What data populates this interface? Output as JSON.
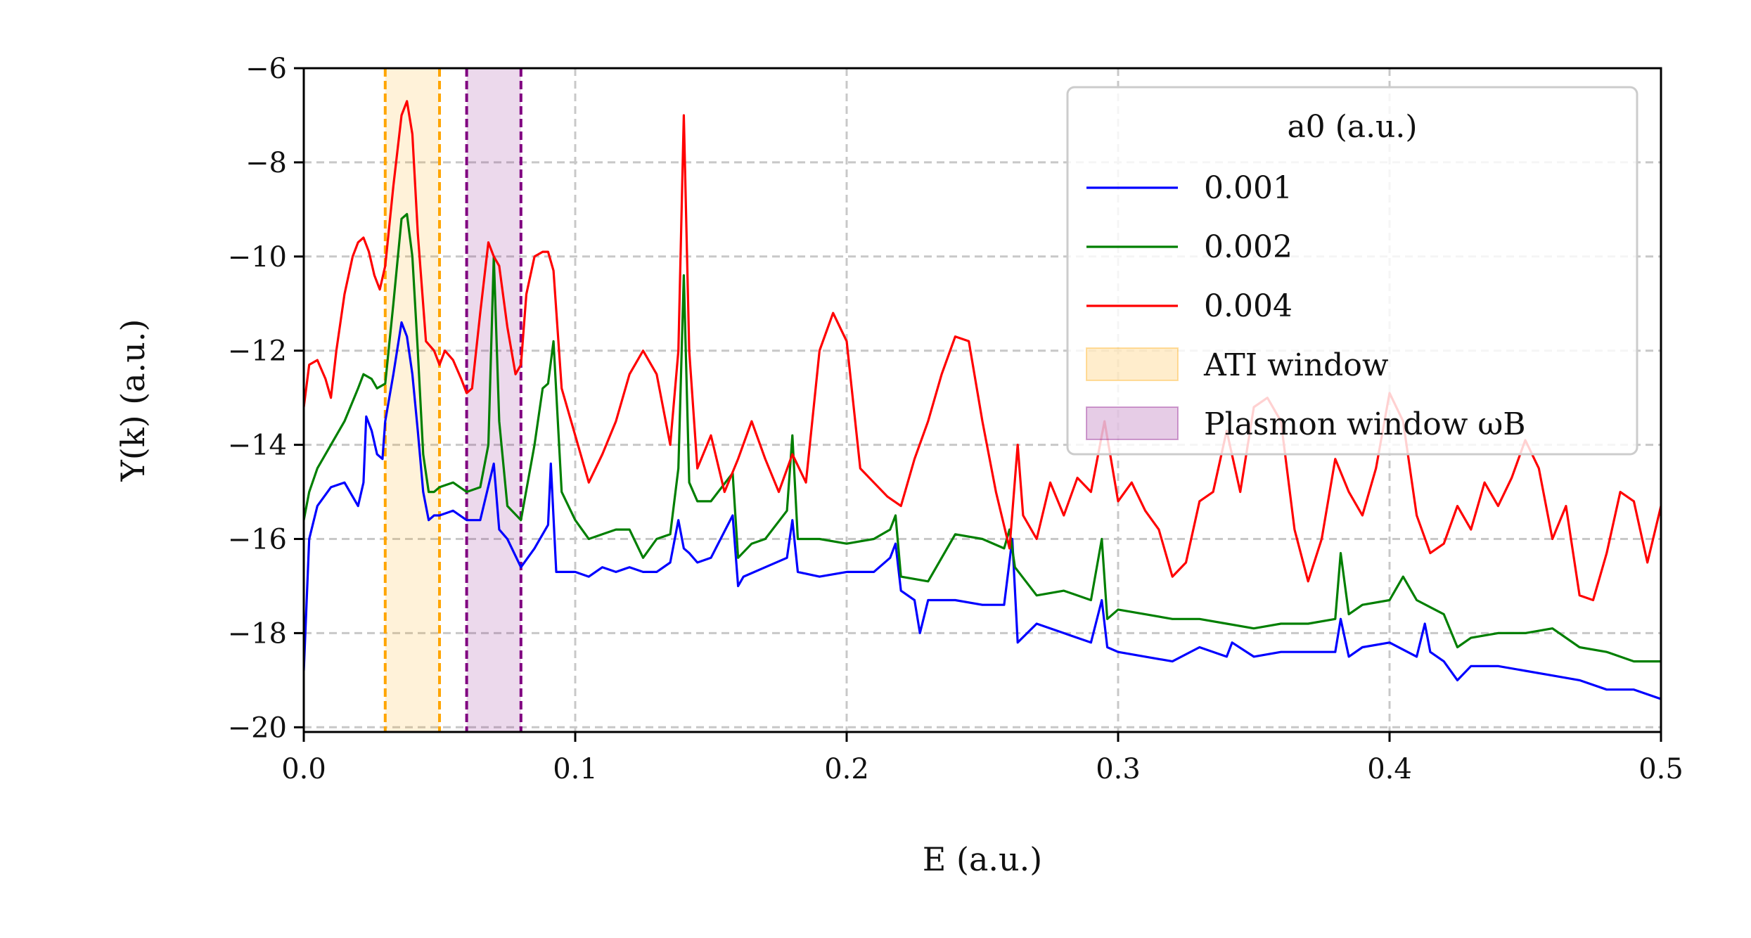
{
  "chart_data": {
    "type": "line",
    "title": "",
    "xlabel": "E (a.u.)",
    "ylabel": "Y(k) (a.u.)",
    "xlim": [
      0.0,
      0.5
    ],
    "ylim": [
      -20.1,
      -6.0
    ],
    "xticks": [
      0.0,
      0.1,
      0.2,
      0.3,
      0.4,
      0.5
    ],
    "xtick_labels": [
      "0.0",
      "0.1",
      "0.2",
      "0.3",
      "0.4",
      "0.5"
    ],
    "yticks": [
      -20,
      -18,
      -16,
      -14,
      -12,
      -10,
      -8,
      -6
    ],
    "ytick_labels": [
      "−20",
      "−18",
      "−16",
      "−14",
      "−12",
      "−10",
      "−8",
      "−6"
    ],
    "grid": true,
    "legend": {
      "title": "a0 (a.u.)",
      "position": "top-right",
      "entries": [
        "0.001",
        "0.002",
        "0.004",
        "ATI window",
        "Plasmon window ωB"
      ]
    },
    "bands": [
      {
        "name": "ATI window",
        "x": [
          0.03,
          0.05
        ],
        "color": "#ffa500"
      },
      {
        "name": "Plasmon window ωB",
        "x": [
          0.06,
          0.08
        ],
        "color": "#800080"
      }
    ],
    "series": [
      {
        "name": "0.001",
        "color": "#0000ff",
        "x": [
          0.0,
          0.002,
          0.005,
          0.01,
          0.015,
          0.02,
          0.022,
          0.023,
          0.025,
          0.027,
          0.029,
          0.03,
          0.033,
          0.036,
          0.038,
          0.04,
          0.042,
          0.044,
          0.046,
          0.048,
          0.05,
          0.055,
          0.06,
          0.065,
          0.07,
          0.072,
          0.075,
          0.08,
          0.085,
          0.09,
          0.091,
          0.093,
          0.1,
          0.105,
          0.11,
          0.115,
          0.12,
          0.125,
          0.13,
          0.135,
          0.138,
          0.14,
          0.142,
          0.145,
          0.15,
          0.158,
          0.16,
          0.162,
          0.17,
          0.178,
          0.18,
          0.182,
          0.19,
          0.2,
          0.21,
          0.216,
          0.218,
          0.22,
          0.225,
          0.227,
          0.23,
          0.24,
          0.25,
          0.258,
          0.261,
          0.263,
          0.27,
          0.28,
          0.29,
          0.294,
          0.296,
          0.3,
          0.31,
          0.32,
          0.33,
          0.34,
          0.342,
          0.35,
          0.36,
          0.37,
          0.38,
          0.382,
          0.385,
          0.39,
          0.4,
          0.41,
          0.413,
          0.415,
          0.42,
          0.425,
          0.43,
          0.44,
          0.45,
          0.46,
          0.47,
          0.48,
          0.49,
          0.5
        ],
        "values": [
          -18.8,
          -16.0,
          -15.3,
          -14.9,
          -14.8,
          -15.3,
          -14.8,
          -13.4,
          -13.7,
          -14.2,
          -14.3,
          -13.5,
          -12.5,
          -11.4,
          -11.7,
          -12.5,
          -13.7,
          -15.0,
          -15.6,
          -15.5,
          -15.5,
          -15.4,
          -15.6,
          -15.6,
          -14.4,
          -15.8,
          -16.0,
          -16.6,
          -16.2,
          -15.7,
          -14.4,
          -16.7,
          -16.7,
          -16.8,
          -16.6,
          -16.7,
          -16.6,
          -16.7,
          -16.7,
          -16.5,
          -15.6,
          -16.2,
          -16.3,
          -16.5,
          -16.4,
          -15.5,
          -17.0,
          -16.8,
          -16.6,
          -16.4,
          -15.6,
          -16.7,
          -16.8,
          -16.7,
          -16.7,
          -16.4,
          -16.1,
          -17.1,
          -17.3,
          -18.0,
          -17.3,
          -17.3,
          -17.4,
          -17.4,
          -16.0,
          -18.2,
          -17.8,
          -18.0,
          -18.2,
          -17.3,
          -18.3,
          -18.4,
          -18.5,
          -18.6,
          -18.3,
          -18.5,
          -18.2,
          -18.5,
          -18.4,
          -18.4,
          -18.4,
          -17.7,
          -18.5,
          -18.3,
          -18.2,
          -18.5,
          -17.8,
          -18.4,
          -18.6,
          -19.0,
          -18.7,
          -18.7,
          -18.8,
          -18.9,
          -19.0,
          -19.2,
          -19.2,
          -19.4
        ]
      },
      {
        "name": "0.002",
        "color": "#007f00",
        "x": [
          0.0,
          0.002,
          0.005,
          0.01,
          0.015,
          0.02,
          0.022,
          0.025,
          0.027,
          0.03,
          0.033,
          0.036,
          0.038,
          0.04,
          0.042,
          0.044,
          0.046,
          0.048,
          0.05,
          0.055,
          0.06,
          0.065,
          0.068,
          0.07,
          0.072,
          0.075,
          0.08,
          0.085,
          0.088,
          0.09,
          0.092,
          0.095,
          0.1,
          0.105,
          0.11,
          0.115,
          0.12,
          0.125,
          0.13,
          0.135,
          0.138,
          0.14,
          0.142,
          0.145,
          0.15,
          0.158,
          0.16,
          0.165,
          0.17,
          0.178,
          0.18,
          0.182,
          0.19,
          0.2,
          0.21,
          0.216,
          0.218,
          0.22,
          0.23,
          0.24,
          0.25,
          0.258,
          0.26,
          0.262,
          0.27,
          0.28,
          0.29,
          0.294,
          0.296,
          0.3,
          0.31,
          0.32,
          0.33,
          0.34,
          0.35,
          0.36,
          0.37,
          0.38,
          0.382,
          0.385,
          0.39,
          0.4,
          0.405,
          0.41,
          0.42,
          0.425,
          0.43,
          0.44,
          0.45,
          0.46,
          0.47,
          0.48,
          0.49,
          0.5
        ],
        "values": [
          -15.6,
          -15.0,
          -14.5,
          -14.0,
          -13.5,
          -12.8,
          -12.5,
          -12.6,
          -12.8,
          -12.7,
          -11.0,
          -9.2,
          -9.1,
          -10.0,
          -12.0,
          -14.2,
          -15.0,
          -15.0,
          -14.9,
          -14.8,
          -15.0,
          -14.9,
          -14.0,
          -10.0,
          -13.5,
          -15.3,
          -15.6,
          -14.0,
          -12.8,
          -12.7,
          -11.8,
          -15.0,
          -15.6,
          -16.0,
          -15.9,
          -15.8,
          -15.8,
          -16.4,
          -16.0,
          -15.9,
          -14.5,
          -10.4,
          -14.8,
          -15.2,
          -15.2,
          -14.6,
          -16.4,
          -16.1,
          -16.0,
          -15.4,
          -13.8,
          -16.0,
          -16.0,
          -16.1,
          -16.0,
          -15.8,
          -15.5,
          -16.8,
          -16.9,
          -15.9,
          -16.0,
          -16.2,
          -15.8,
          -16.6,
          -17.2,
          -17.1,
          -17.3,
          -16.0,
          -17.7,
          -17.5,
          -17.6,
          -17.7,
          -17.7,
          -17.8,
          -17.9,
          -17.8,
          -17.8,
          -17.7,
          -16.3,
          -17.6,
          -17.4,
          -17.3,
          -16.8,
          -17.3,
          -17.6,
          -18.3,
          -18.1,
          -18.0,
          -18.0,
          -17.9,
          -18.3,
          -18.4,
          -18.6,
          -18.6
        ]
      },
      {
        "name": "0.004",
        "color": "#ff0000",
        "x": [
          0.0,
          0.002,
          0.005,
          0.008,
          0.01,
          0.012,
          0.015,
          0.018,
          0.02,
          0.022,
          0.024,
          0.026,
          0.028,
          0.03,
          0.033,
          0.036,
          0.038,
          0.04,
          0.042,
          0.045,
          0.048,
          0.05,
          0.052,
          0.055,
          0.058,
          0.06,
          0.062,
          0.065,
          0.068,
          0.07,
          0.072,
          0.075,
          0.078,
          0.08,
          0.082,
          0.085,
          0.088,
          0.09,
          0.092,
          0.095,
          0.1,
          0.105,
          0.11,
          0.115,
          0.12,
          0.125,
          0.13,
          0.135,
          0.138,
          0.14,
          0.142,
          0.145,
          0.15,
          0.155,
          0.16,
          0.165,
          0.17,
          0.175,
          0.18,
          0.185,
          0.19,
          0.195,
          0.2,
          0.205,
          0.21,
          0.215,
          0.22,
          0.225,
          0.23,
          0.235,
          0.24,
          0.245,
          0.25,
          0.255,
          0.26,
          0.263,
          0.265,
          0.27,
          0.275,
          0.28,
          0.285,
          0.29,
          0.295,
          0.3,
          0.305,
          0.31,
          0.315,
          0.32,
          0.325,
          0.33,
          0.335,
          0.34,
          0.345,
          0.35,
          0.355,
          0.36,
          0.365,
          0.37,
          0.375,
          0.38,
          0.385,
          0.39,
          0.395,
          0.4,
          0.405,
          0.41,
          0.415,
          0.42,
          0.425,
          0.43,
          0.435,
          0.44,
          0.445,
          0.45,
          0.455,
          0.46,
          0.465,
          0.47,
          0.475,
          0.48,
          0.485,
          0.49,
          0.495,
          0.5
        ],
        "values": [
          -13.2,
          -12.3,
          -12.2,
          -12.6,
          -13.0,
          -12.0,
          -10.8,
          -10.0,
          -9.7,
          -9.6,
          -9.9,
          -10.4,
          -10.7,
          -10.2,
          -8.5,
          -7.0,
          -6.7,
          -7.4,
          -9.5,
          -11.8,
          -12.0,
          -12.3,
          -12.0,
          -12.2,
          -12.6,
          -12.9,
          -12.8,
          -11.2,
          -9.7,
          -10.0,
          -10.2,
          -11.5,
          -12.5,
          -12.3,
          -10.8,
          -10.0,
          -9.9,
          -9.9,
          -10.3,
          -12.8,
          -13.8,
          -14.8,
          -14.2,
          -13.5,
          -12.5,
          -12.0,
          -12.5,
          -14.0,
          -12.0,
          -7.0,
          -12.0,
          -14.5,
          -13.8,
          -15.0,
          -14.3,
          -13.5,
          -14.3,
          -15.0,
          -14.2,
          -14.8,
          -12.0,
          -11.2,
          -11.8,
          -14.5,
          -14.8,
          -15.1,
          -15.3,
          -14.3,
          -13.5,
          -12.5,
          -11.7,
          -11.8,
          -13.5,
          -15.0,
          -16.2,
          -14.0,
          -15.5,
          -16.0,
          -14.8,
          -15.5,
          -14.7,
          -15.0,
          -13.5,
          -15.2,
          -14.8,
          -15.4,
          -15.8,
          -16.8,
          -16.5,
          -15.2,
          -15.0,
          -13.7,
          -15.0,
          -13.2,
          -13.0,
          -13.5,
          -15.8,
          -16.9,
          -16.0,
          -14.3,
          -15.0,
          -15.5,
          -14.5,
          -12.9,
          -13.5,
          -15.5,
          -16.3,
          -16.1,
          -15.3,
          -15.8,
          -14.8,
          -15.3,
          -14.7,
          -13.9,
          -14.5,
          -16.0,
          -15.3,
          -17.2,
          -17.3,
          -16.3,
          -15.0,
          -15.2,
          -16.5,
          -15.3
        ]
      }
    ]
  }
}
